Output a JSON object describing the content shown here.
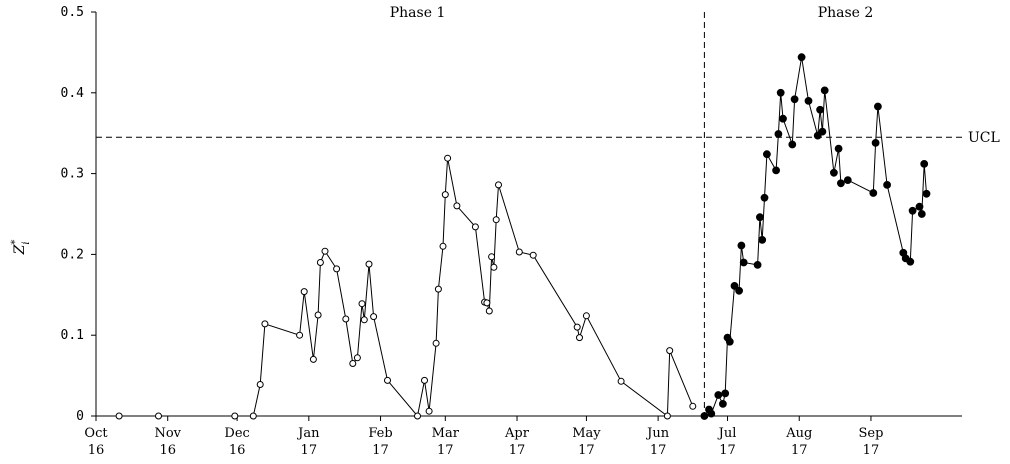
{
  "chart_data": {
    "type": "line",
    "ylabel": "Z",
    "ylabel_sub": "i",
    "ylabel_sup": "*",
    "ylim": [
      0,
      0.5
    ],
    "yticks": [
      "0",
      "0.1",
      "0.2",
      "0.3",
      "0.4",
      "0.5"
    ],
    "ytick_values": [
      0,
      0.1,
      0.2,
      0.3,
      0.4,
      0.5
    ],
    "xlim": [
      "2016-10-01",
      "2017-10-01"
    ],
    "xticks": [
      {
        "date": "2016-10-01",
        "month": "Oct",
        "year": "16"
      },
      {
        "date": "2016-11-01",
        "month": "Nov",
        "year": "16"
      },
      {
        "date": "2016-12-01",
        "month": "Dec",
        "year": "16"
      },
      {
        "date": "2017-01-01",
        "month": "Jan",
        "year": "17"
      },
      {
        "date": "2017-02-01",
        "month": "Feb",
        "year": "17"
      },
      {
        "date": "2017-03-01",
        "month": "Mar",
        "year": "17"
      },
      {
        "date": "2017-04-01",
        "month": "Apr",
        "year": "17"
      },
      {
        "date": "2017-05-01",
        "month": "May",
        "year": "17"
      },
      {
        "date": "2017-06-01",
        "month": "Jun",
        "year": "17"
      },
      {
        "date": "2017-07-01",
        "month": "Jul",
        "year": "17"
      },
      {
        "date": "2017-08-01",
        "month": "Aug",
        "year": "17"
      },
      {
        "date": "2017-09-01",
        "month": "Sep",
        "year": "17"
      }
    ],
    "ucl": {
      "value": 0.345,
      "label": "UCL"
    },
    "phase_divider": "2017-06-21",
    "annotations": [
      {
        "text": "Phase 1",
        "date": "2017-02-17"
      },
      {
        "text": "Phase 2",
        "date": "2017-08-21"
      }
    ],
    "series": [
      {
        "marker": "open-circle",
        "points": [
          [
            "2016-10-11",
            0.0
          ],
          [
            "2016-10-28",
            0.0
          ],
          [
            "2016-11-30",
            0.0
          ],
          [
            "2016-12-08",
            0.0
          ],
          [
            "2016-12-11",
            0.039
          ],
          [
            "2016-12-13",
            0.114
          ],
          [
            "2016-12-28",
            0.1
          ],
          [
            "2016-12-30",
            0.154
          ],
          [
            "2017-01-03",
            0.07
          ],
          [
            "2017-01-05",
            0.125
          ],
          [
            "2017-01-06",
            0.19
          ],
          [
            "2017-01-08",
            0.204
          ],
          [
            "2017-01-13",
            0.182
          ],
          [
            "2017-01-17",
            0.12
          ],
          [
            "2017-01-20",
            0.065
          ],
          [
            "2017-01-22",
            0.072
          ],
          [
            "2017-01-24",
            0.139
          ],
          [
            "2017-01-25",
            0.119
          ],
          [
            "2017-01-27",
            0.188
          ],
          [
            "2017-01-29",
            0.123
          ],
          [
            "2017-02-04",
            0.044
          ],
          [
            "2017-02-17",
            0.0
          ],
          [
            "2017-02-20",
            0.044
          ],
          [
            "2017-02-22",
            0.006
          ],
          [
            "2017-02-25",
            0.09
          ],
          [
            "2017-02-26",
            0.157
          ],
          [
            "2017-02-28",
            0.21
          ],
          [
            "2017-03-01",
            0.274
          ],
          [
            "2017-03-02",
            0.319
          ],
          [
            "2017-03-06",
            0.26
          ],
          [
            "2017-03-14",
            0.234
          ],
          [
            "2017-03-18",
            0.141
          ],
          [
            "2017-03-19",
            0.14
          ],
          [
            "2017-03-20",
            0.13
          ],
          [
            "2017-03-21",
            0.197
          ],
          [
            "2017-03-22",
            0.184
          ],
          [
            "2017-03-23",
            0.243
          ],
          [
            "2017-03-24",
            0.286
          ],
          [
            "2017-04-02",
            0.203
          ],
          [
            "2017-04-08",
            0.199
          ],
          [
            "2017-04-27",
            0.11
          ],
          [
            "2017-04-28",
            0.097
          ],
          [
            "2017-05-01",
            0.124
          ],
          [
            "2017-05-16",
            0.043
          ],
          [
            "2017-06-05",
            0.0
          ],
          [
            "2017-06-06",
            0.081
          ],
          [
            "2017-06-16",
            0.012
          ]
        ]
      },
      {
        "marker": "filled-circle",
        "points": [
          [
            "2017-06-21",
            0.0
          ],
          [
            "2017-06-23",
            0.008
          ],
          [
            "2017-06-24",
            0.003
          ],
          [
            "2017-06-27",
            0.026
          ],
          [
            "2017-06-29",
            0.015
          ],
          [
            "2017-06-30",
            0.028
          ],
          [
            "2017-07-01",
            0.097
          ],
          [
            "2017-07-02",
            0.092
          ],
          [
            "2017-07-04",
            0.161
          ],
          [
            "2017-07-06",
            0.155
          ],
          [
            "2017-07-07",
            0.211
          ],
          [
            "2017-07-08",
            0.19
          ],
          [
            "2017-07-14",
            0.187
          ],
          [
            "2017-07-15",
            0.246
          ],
          [
            "2017-07-16",
            0.218
          ],
          [
            "2017-07-17",
            0.27
          ],
          [
            "2017-07-18",
            0.324
          ],
          [
            "2017-07-22",
            0.304
          ],
          [
            "2017-07-23",
            0.349
          ],
          [
            "2017-07-24",
            0.4
          ],
          [
            "2017-07-25",
            0.368
          ],
          [
            "2017-07-29",
            0.336
          ],
          [
            "2017-07-30",
            0.392
          ],
          [
            "2017-08-02",
            0.444
          ],
          [
            "2017-08-05",
            0.39
          ],
          [
            "2017-08-09",
            0.347
          ],
          [
            "2017-08-10",
            0.379
          ],
          [
            "2017-08-11",
            0.352
          ],
          [
            "2017-08-12",
            0.403
          ],
          [
            "2017-08-16",
            0.301
          ],
          [
            "2017-08-18",
            0.331
          ],
          [
            "2017-08-19",
            0.288
          ],
          [
            "2017-08-22",
            0.292
          ],
          [
            "2017-09-02",
            0.276
          ],
          [
            "2017-09-03",
            0.338
          ],
          [
            "2017-09-04",
            0.383
          ],
          [
            "2017-09-08",
            0.286
          ],
          [
            "2017-09-15",
            0.202
          ],
          [
            "2017-09-16",
            0.195
          ],
          [
            "2017-09-18",
            0.191
          ],
          [
            "2017-09-19",
            0.254
          ],
          [
            "2017-09-22",
            0.259
          ],
          [
            "2017-09-23",
            0.25
          ],
          [
            "2017-09-24",
            0.312
          ],
          [
            "2017-09-25",
            0.275
          ]
        ]
      }
    ]
  }
}
